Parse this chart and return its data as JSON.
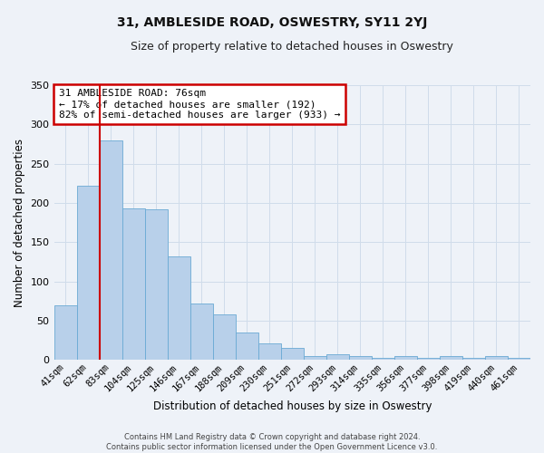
{
  "title": "31, AMBLESIDE ROAD, OSWESTRY, SY11 2YJ",
  "subtitle": "Size of property relative to detached houses in Oswestry",
  "xlabel_bottom": "Distribution of detached houses by size in Oswestry",
  "ylabel": "Number of detached properties",
  "footer_line1": "Contains HM Land Registry data © Crown copyright and database right 2024.",
  "footer_line2": "Contains public sector information licensed under the Open Government Licence v3.0.",
  "categories": [
    "41sqm",
    "62sqm",
    "83sqm",
    "104sqm",
    "125sqm",
    "146sqm",
    "167sqm",
    "188sqm",
    "209sqm",
    "230sqm",
    "251sqm",
    "272sqm",
    "293sqm",
    "314sqm",
    "335sqm",
    "356sqm",
    "377sqm",
    "398sqm",
    "419sqm",
    "440sqm",
    "461sqm"
  ],
  "bar_values": [
    70,
    222,
    279,
    193,
    192,
    132,
    72,
    58,
    35,
    21,
    15,
    5,
    7,
    5,
    3,
    5,
    3,
    5,
    3,
    5,
    3
  ],
  "bar_color": "#b8d0ea",
  "bar_edge_color": "#6aaad4",
  "grid_color": "#d0dcea",
  "background_color": "#eef2f8",
  "vline_color": "#cc0000",
  "annotation_text": "31 AMBLESIDE ROAD: 76sqm\n← 17% of detached houses are smaller (192)\n82% of semi-detached houses are larger (933) →",
  "annotation_box_facecolor": "#ffffff",
  "annotation_box_edge": "#cc0000",
  "ylim": [
    0,
    350
  ],
  "yticks": [
    0,
    50,
    100,
    150,
    200,
    250,
    300,
    350
  ],
  "vline_pos": 1.5,
  "figsize": [
    6.0,
    5.0
  ],
  "dpi": 100
}
